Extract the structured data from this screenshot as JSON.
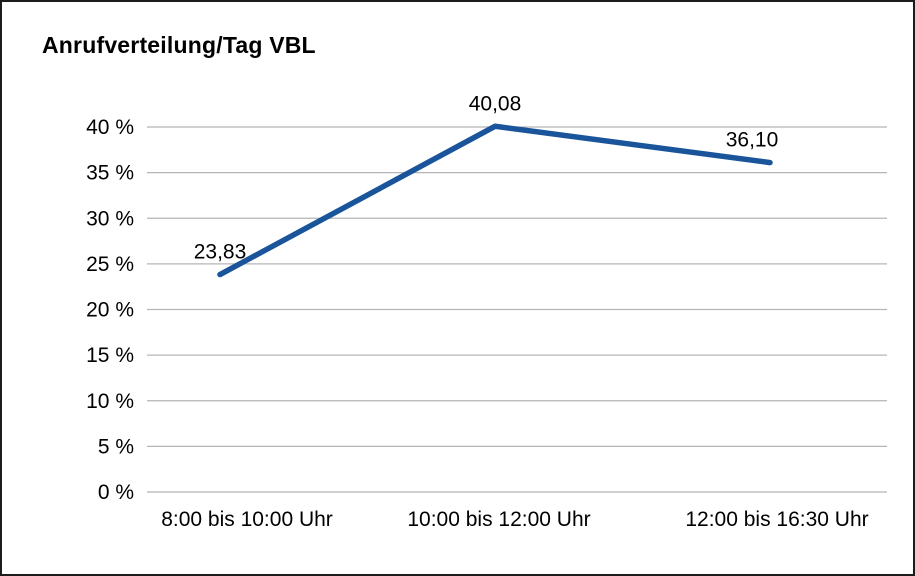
{
  "chart_data": {
    "type": "line",
    "title": "Anrufverteilung/Tag VBL",
    "categories": [
      "8:00 bis 10:00 Uhr",
      "10:00 bis 12:00 Uhr",
      "12:00 bis 16:30 Uhr"
    ],
    "values": [
      23.83,
      40.08,
      36.1
    ],
    "value_labels": [
      "23,83",
      "40,08",
      "36,10"
    ],
    "xlabel": "",
    "ylabel": "",
    "ylim": [
      0,
      40
    ],
    "ytick_step": 5,
    "ytick_labels": [
      "0 %",
      "5 %",
      "10 %",
      "15 %",
      "20 %",
      "25 %",
      "30 %",
      "35 %",
      "40 %"
    ],
    "grid": true,
    "legend": "none",
    "line_color": "#1a559b",
    "grid_color": "#b5b5b5"
  }
}
